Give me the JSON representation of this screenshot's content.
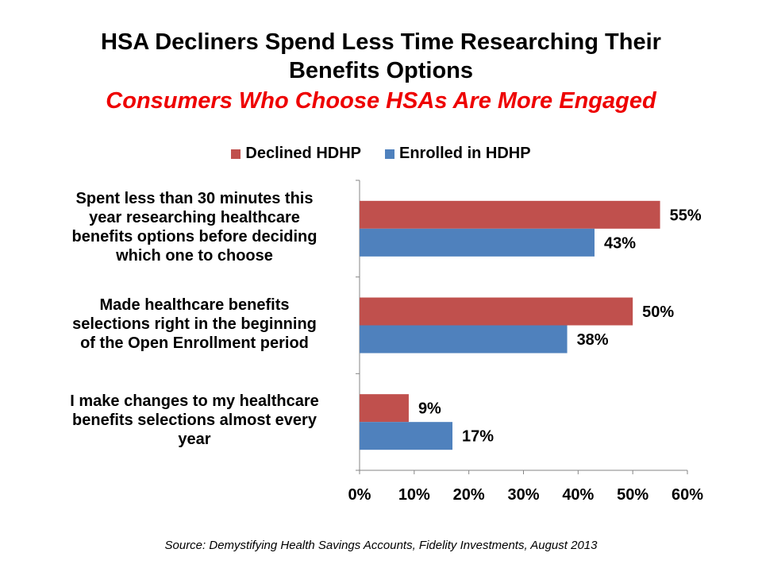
{
  "chart_data": {
    "type": "bar",
    "orientation": "horizontal",
    "title": "HSA Decliners Spend Less Time Researching Their Benefits Options",
    "title_lines": [
      "HSA Decliners Spend Less Time Researching Their",
      "Benefits Options"
    ],
    "subtitle": "Consumers Who Choose HSAs Are More Engaged",
    "categories": [
      "Spent less than 30 minutes this year researching healthcare benefits options before deciding which one to choose",
      "Made healthcare benefits selections right in the beginning of the Open Enrollment period",
      "I make changes to my healthcare benefits selections almost every year"
    ],
    "category_label_lines": [
      [
        "Spent less than 30 minutes this",
        "year researching healthcare",
        "benefits options before deciding",
        "which one to choose"
      ],
      [
        "Made healthcare benefits",
        "selections right in the beginning",
        "of the Open Enrollment period"
      ],
      [
        "I make changes to my healthcare",
        "benefits selections almost every",
        "year"
      ]
    ],
    "series": [
      {
        "name": "Declined HDHP",
        "color": "#c0504d",
        "values": [
          55,
          50,
          9
        ],
        "labels": [
          "55%",
          "50%",
          "9%"
        ]
      },
      {
        "name": "Enrolled in HDHP",
        "color": "#4f81bd",
        "values": [
          43,
          38,
          17
        ],
        "labels": [
          "43%",
          "38%",
          "17%"
        ]
      }
    ],
    "xlim": [
      0,
      60
    ],
    "xticks": [
      0,
      10,
      20,
      30,
      40,
      50,
      60
    ],
    "xtick_labels": [
      "0%",
      "10%",
      "20%",
      "30%",
      "40%",
      "50%",
      "60%"
    ],
    "xlabel": "",
    "ylabel": "",
    "grid": false,
    "legend_position": "top-center",
    "source": "Source: Demystifying Health Savings Accounts, Fidelity Investments, August 2013"
  }
}
